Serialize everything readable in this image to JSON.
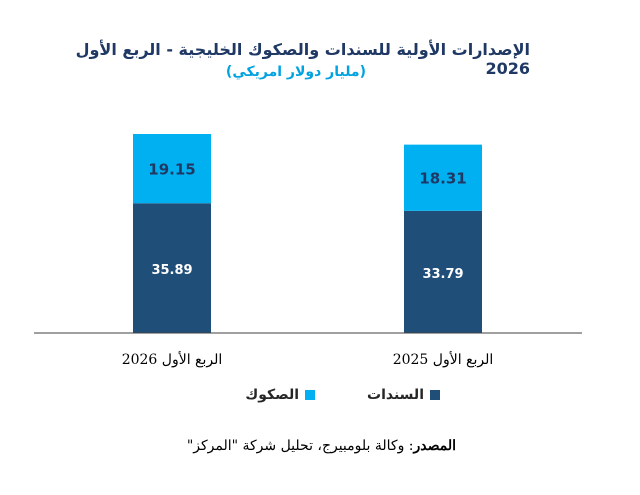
{
  "title": "الإصدارات الأولية للسندات والصكوك الخليجية - الربع الأول 2026",
  "subtitle": "(مليار دولار امريكي)",
  "source": {
    "label": "المصدر",
    "text": ": وكالة بلومبيرج، تحليل شركة \"المركز\""
  },
  "colors": {
    "bonds": "#1f4e79",
    "sukuk": "#00b0f0",
    "axis": "#404040"
  },
  "chart_data": {
    "type": "bar",
    "stacked": true,
    "categories": [
      "الربع الأول 2026",
      "الربع الأول 2025"
    ],
    "series": [
      {
        "name": "السندات",
        "values": [
          35.89,
          33.79
        ],
        "color": "#1f4e79"
      },
      {
        "name": "الصكوك",
        "values": [
          19.15,
          18.31
        ],
        "color": "#00b0f0"
      }
    ],
    "title": "الإصدارات الأولية للسندات والصكوك الخليجية - الربع الأول 2026",
    "ylabel": "",
    "xlabel": "",
    "ylim": [
      0,
      60
    ],
    "grid": false,
    "y_axis_visible": false,
    "legend_position": "bottom"
  }
}
